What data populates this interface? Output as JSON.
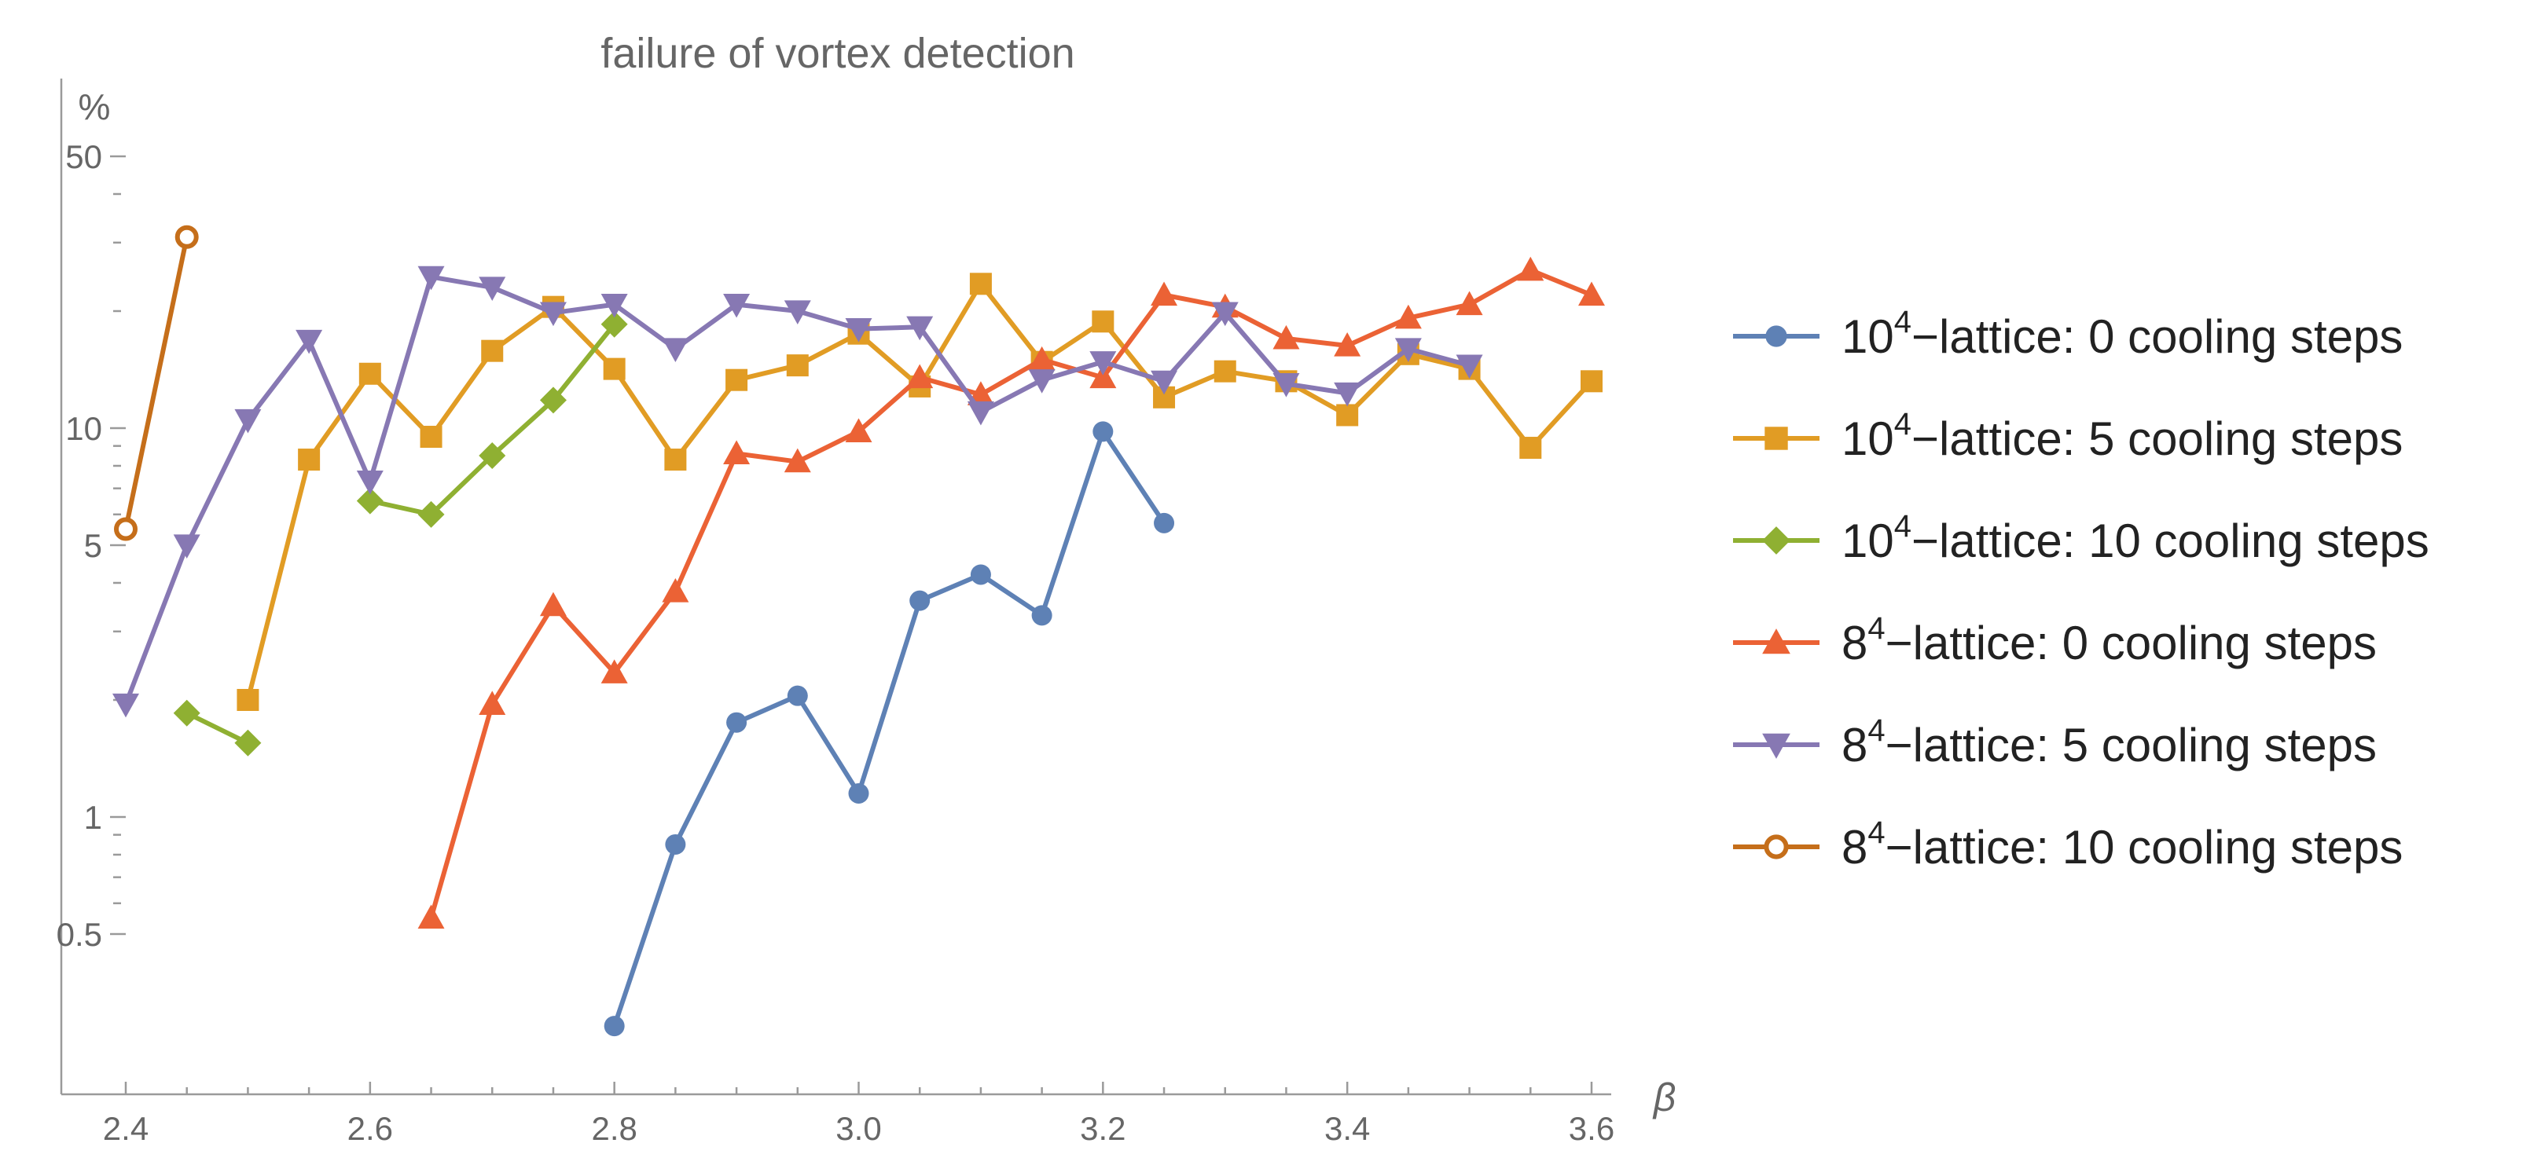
{
  "chart_data": {
    "type": "line",
    "title": "failure of vortex detection",
    "xlabel": "β",
    "ylabel": "%",
    "xlim": [
      2.38,
      3.64
    ],
    "ylim": [
      0.24,
      64
    ],
    "yscale": "log",
    "x_ticks": [
      2.4,
      2.6,
      2.8,
      3.0,
      3.2,
      3.4,
      3.6
    ],
    "x_tick_labels": [
      "2.4",
      "2.6",
      "2.8",
      "3.0",
      "3.2",
      "3.4",
      "3.6"
    ],
    "x_minor_ticks": [
      2.45,
      2.5,
      2.55,
      2.65,
      2.7,
      2.75,
      2.85,
      2.9,
      2.95,
      3.05,
      3.1,
      3.15,
      3.25,
      3.3,
      3.35,
      3.45,
      3.5,
      3.55
    ],
    "y_ticks": [
      0.5,
      1,
      5,
      10,
      50
    ],
    "y_tick_labels": [
      "0.5",
      "1",
      "5",
      "10",
      "50"
    ],
    "y_minor_ticks": [
      0.6,
      0.7,
      0.8,
      0.9,
      2,
      3,
      4,
      6,
      7,
      8,
      9,
      20,
      30,
      40
    ],
    "legend_position": "right",
    "series": [
      {
        "name": "10⁴−lattice: 0 cooling steps",
        "label_base": "10",
        "label_sup": "4",
        "label_rest": "−lattice: 0 cooling steps",
        "color": "#5e81b5",
        "marker": "circle",
        "points": [
          [
            2.8,
            0.29
          ],
          [
            2.85,
            0.85
          ],
          [
            2.9,
            1.75
          ],
          [
            2.95,
            2.05
          ],
          [
            3.0,
            1.15
          ],
          [
            3.05,
            3.6
          ],
          [
            3.1,
            4.2
          ],
          [
            3.15,
            3.3
          ],
          [
            3.2,
            9.8
          ],
          [
            3.25,
            5.7
          ]
        ]
      },
      {
        "name": "10⁴−lattice: 5 cooling steps",
        "label_base": "10",
        "label_sup": "4",
        "label_rest": "−lattice: 5 cooling steps",
        "color": "#e19c24",
        "marker": "square",
        "points": [
          [
            2.5,
            2.0
          ],
          [
            2.55,
            8.3
          ],
          [
            2.6,
            13.8
          ],
          [
            2.65,
            9.5
          ],
          [
            2.7,
            15.8
          ],
          [
            2.75,
            20.5
          ],
          [
            2.8,
            14.2
          ],
          [
            2.85,
            8.3
          ],
          [
            2.9,
            13.3
          ],
          [
            2.95,
            14.5
          ],
          [
            3.0,
            17.5
          ],
          [
            3.05,
            12.8
          ],
          [
            3.1,
            23.5
          ],
          [
            3.15,
            14.8
          ],
          [
            3.2,
            18.8
          ],
          [
            3.25,
            12.0
          ],
          [
            3.3,
            14.0
          ],
          [
            3.35,
            13.2
          ],
          [
            3.4,
            10.8
          ],
          [
            3.45,
            15.5
          ],
          [
            3.5,
            14.2
          ],
          [
            3.55,
            8.9
          ],
          [
            3.6,
            13.2
          ]
        ]
      },
      {
        "name": "10⁴−lattice: 10 cooling steps",
        "label_base": "10",
        "label_sup": "4",
        "label_rest": "−lattice: 10 cooling steps",
        "color": "#8fb032",
        "marker": "diamond",
        "segments": [
          [
            [
              2.45,
              1.85
            ],
            [
              2.5,
              1.55
            ]
          ],
          [
            [
              2.6,
              6.5
            ],
            [
              2.65,
              6.0
            ],
            [
              2.7,
              8.5
            ],
            [
              2.75,
              11.8
            ],
            [
              2.8,
              18.5
            ]
          ]
        ]
      },
      {
        "name": "8⁴−lattice: 0 cooling steps",
        "label_base": "8",
        "label_sup": "4",
        "label_rest": "−lattice: 0 cooling steps",
        "color": "#eb6235",
        "marker": "triangle-up",
        "points": [
          [
            2.65,
            0.55
          ],
          [
            2.7,
            1.95
          ],
          [
            2.75,
            3.5
          ],
          [
            2.8,
            2.35
          ],
          [
            2.85,
            3.8
          ],
          [
            2.9,
            8.6
          ],
          [
            2.95,
            8.2
          ],
          [
            3.0,
            9.8
          ],
          [
            3.05,
            13.5
          ],
          [
            3.1,
            12.2
          ],
          [
            3.15,
            15.0
          ],
          [
            3.2,
            13.5
          ],
          [
            3.25,
            22.0
          ],
          [
            3.3,
            20.5
          ],
          [
            3.35,
            17.0
          ],
          [
            3.4,
            16.3
          ],
          [
            3.45,
            19.2
          ],
          [
            3.5,
            20.8
          ],
          [
            3.55,
            25.5
          ],
          [
            3.6,
            22.0
          ]
        ]
      },
      {
        "name": "8⁴−lattice: 5 cooling steps",
        "label_base": "8",
        "label_sup": "4",
        "label_rest": "−lattice: 5 cooling steps",
        "color": "#8778b3",
        "marker": "triangle-down",
        "points": [
          [
            2.4,
            1.95
          ],
          [
            2.45,
            5.0
          ],
          [
            2.5,
            10.5
          ],
          [
            2.55,
            16.8
          ],
          [
            2.6,
            7.3
          ],
          [
            2.65,
            24.5
          ],
          [
            2.7,
            23.0
          ],
          [
            2.75,
            19.8
          ],
          [
            2.8,
            20.8
          ],
          [
            2.85,
            16.0
          ],
          [
            2.9,
            20.8
          ],
          [
            2.95,
            20.0
          ],
          [
            3.0,
            18.0
          ],
          [
            3.05,
            18.2
          ],
          [
            3.1,
            11.0
          ],
          [
            3.15,
            13.3
          ],
          [
            3.2,
            14.8
          ],
          [
            3.25,
            13.2
          ],
          [
            3.3,
            19.8
          ],
          [
            3.35,
            13.0
          ],
          [
            3.4,
            12.3
          ],
          [
            3.45,
            16.0
          ],
          [
            3.5,
            14.5
          ]
        ]
      },
      {
        "name": "8⁴−lattice: 10 cooling steps",
        "label_base": "8",
        "label_sup": "4",
        "label_rest": "−lattice: 10 cooling steps",
        "color": "#c56e1a",
        "marker": "open-circle",
        "points": [
          [
            2.4,
            5.5
          ],
          [
            2.45,
            31.0
          ]
        ]
      }
    ]
  }
}
